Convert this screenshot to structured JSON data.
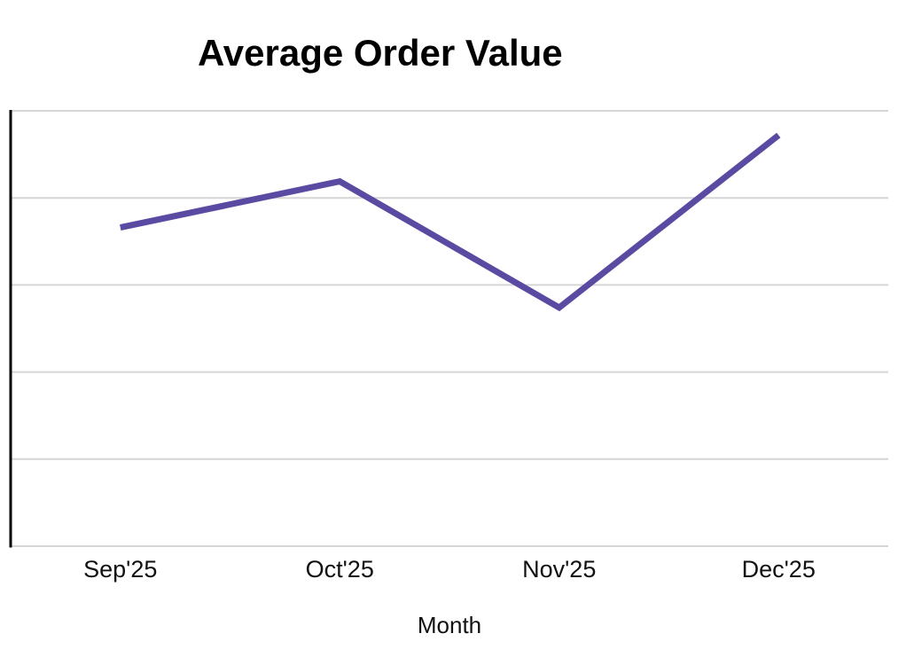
{
  "chart_data": {
    "type": "line",
    "title": "Average Order Value",
    "xlabel": "Month",
    "ylabel": "",
    "categories": [
      "Sep'25",
      "Oct'25",
      "Nov'25",
      "Dec'25"
    ],
    "series": [
      {
        "name": "Average Order Value",
        "values": [
          3.66,
          4.19,
          2.74,
          4.72
        ]
      }
    ],
    "ylim": [
      0,
      5
    ],
    "y_tick_labels_visible": false,
    "grid": true,
    "gridline_count": 6,
    "legend_position": "none",
    "colors": {
      "line": "#5B4AA2",
      "grid": "#d6d6d6",
      "axis": "#000000",
      "title": "#000000",
      "tick_label": "#111111",
      "background": "#ffffff"
    }
  }
}
